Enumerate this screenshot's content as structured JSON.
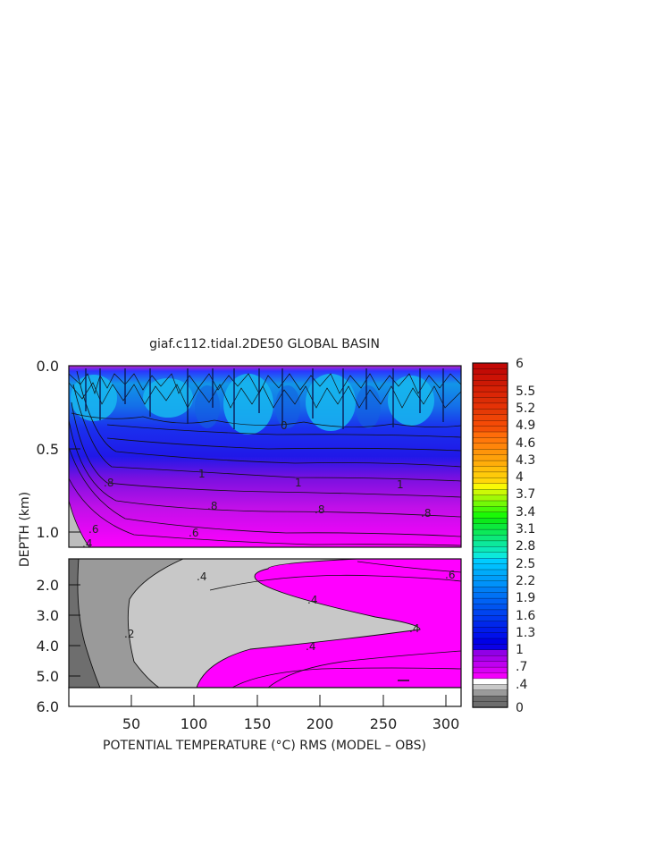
{
  "chart_data": {
    "type": "heatmap",
    "title": "giaf.c112.tidal.2DE50 GLOBAL BASIN",
    "xlabel": "POTENTIAL TEMPERATURE (°C) RMS (MODEL – OBS)",
    "ylabel": "DEPTH (km)",
    "xlim": [
      1,
      310
    ],
    "x_ticks": [
      50,
      100,
      150,
      200,
      250,
      300
    ],
    "upper_panel": {
      "ylim": [
        0.0,
        1.2
      ],
      "y_ticks": [
        "0.0",
        "0.5",
        "1.0"
      ],
      "contour_labels": [
        ".8",
        ".8",
        ".8",
        ".8",
        "1",
        "1",
        "1",
        ".6",
        ".6",
        ".4",
        "0"
      ]
    },
    "lower_panel": {
      "ylim": [
        1.2,
        6.0
      ],
      "y_ticks": [
        "2.0",
        "3.0",
        "4.0",
        "5.0",
        "6.0"
      ],
      "contour_labels": [
        ".4",
        ".4",
        ".4",
        ".4",
        ".6",
        ".2"
      ]
    },
    "colorbar": {
      "min": 0,
      "max": 6,
      "labels": [
        "6",
        "5.5",
        "5.2",
        "4.9",
        "4.6",
        "4.3",
        "4",
        "3.7",
        "3.4",
        "3.1",
        "2.8",
        "2.5",
        "2.2",
        "1.9",
        "1.6",
        "1.3",
        "1",
        ".7",
        ".4",
        "0"
      ]
    }
  }
}
